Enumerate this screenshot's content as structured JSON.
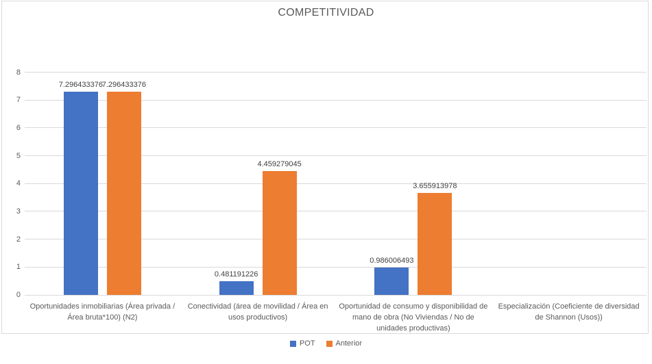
{
  "title": "COMPETITIVIDAD",
  "chart_data": {
    "type": "bar",
    "title": "COMPETITIVIDAD",
    "categories": [
      "Oportunidades inmobiliarias (Área privada / Área bruta*100) (N2)",
      "Conectividad (área de movilidad / Área en usos productivos)",
      "Oportunidad de consumo y disponibilidad de mano de obra (No Viviendas / No de unidades productivas)",
      "Especialización (Coeficiente de diversidad de Shannon (Usos))"
    ],
    "series": [
      {
        "name": "POT",
        "color": "#4472C4",
        "values": [
          7.296433376,
          0.481191226,
          0.986006493,
          0
        ],
        "data_labels": [
          "7.296433376",
          "0.481191226",
          "0.986006493",
          ""
        ]
      },
      {
        "name": "Anterior",
        "color": "#ED7D31",
        "values": [
          7.296433376,
          4.459279045,
          3.655913978,
          0
        ],
        "data_labels": [
          "7.296433376",
          "4.459279045",
          "3.655913978",
          ""
        ]
      }
    ],
    "xlabel": "",
    "ylabel": "",
    "ylim": [
      0,
      8
    ],
    "yticks": [
      0,
      1,
      2,
      3,
      4,
      5,
      6,
      7,
      8
    ],
    "grid": true,
    "legend_position": "bottom",
    "gridline_color": "#D9D9D9",
    "frame_border_color": "#D9D9D9",
    "title_color": "#595959",
    "axis_label_color": "#595959",
    "data_label_color": "#404040"
  }
}
